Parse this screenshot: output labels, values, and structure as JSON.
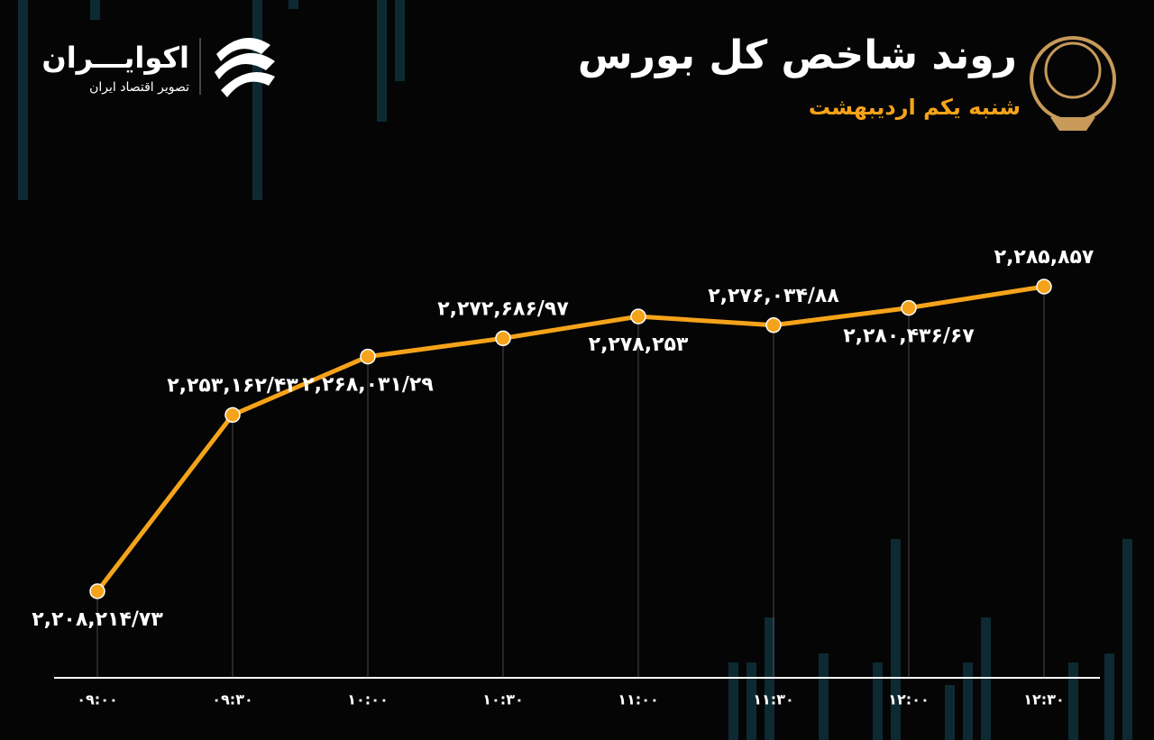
{
  "chart_data": {
    "type": "line",
    "title": "روند شاخص کل بورس",
    "subtitle": "شنبه یکم اردیبهشت",
    "categories": [
      "۰۹:۰۰",
      "۰۹:۳۰",
      "۱۰:۰۰",
      "۱۰:۳۰",
      "۱۱:۰۰",
      "۱۱:۳۰",
      "۱۲:۰۰",
      "۱۲:۳۰"
    ],
    "series": [
      {
        "color": "#f5a31a",
        "values": [
          2208214.73,
          2253162.43,
          2268031.29,
          2272686.97,
          2278253,
          2276034.88,
          2280436.67,
          2285857
        ],
        "value_labels": [
          "۲,۲۰۸,۲۱۴/۷۳",
          "۲,۲۵۳,۱۶۲/۴۳",
          "۲,۲۶۸,۰۳۱/۲۹",
          "۲,۲۷۲,۶۸۶/۹۷",
          "۲,۲۷۸,۲۵۳",
          "۲,۲۷۶,۰۳۴/۸۸",
          "۲,۲۸۰,۴۳۶/۶۷",
          "۲,۲۸۵,۸۵۷"
        ]
      }
    ]
  },
  "brand": {
    "name": "اکوایـــران",
    "tagline": "تصویر اقتصاد ایران"
  }
}
